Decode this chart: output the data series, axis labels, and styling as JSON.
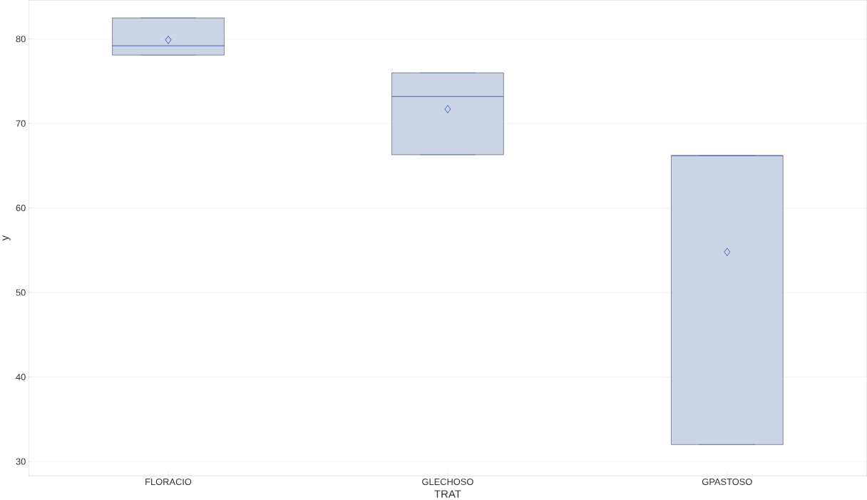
{
  "chart_data": {
    "type": "box",
    "xlabel": "TRAT",
    "ylabel": "y",
    "categories": [
      "FLORACIO",
      "GLECHOSO",
      "GPASTOSO"
    ],
    "boxes": [
      {
        "low": 78.1,
        "q1": 78.1,
        "median": 79.2,
        "q3": 82.5,
        "high": 82.5,
        "mean": 79.9
      },
      {
        "low": 66.3,
        "q1": 66.3,
        "median": 73.2,
        "q3": 76.0,
        "high": 76.0,
        "mean": 71.7
      },
      {
        "low": 32.0,
        "q1": 32.0,
        "median": 66.2,
        "q3": 66.2,
        "high": 66.2,
        "mean": 54.8
      }
    ],
    "color": "#cad5e5",
    "ylim": [
      28.3,
      84.6
    ],
    "yticks": [
      30,
      40,
      50,
      60,
      70,
      80
    ],
    "grid": "y",
    "marker": "diamond"
  }
}
